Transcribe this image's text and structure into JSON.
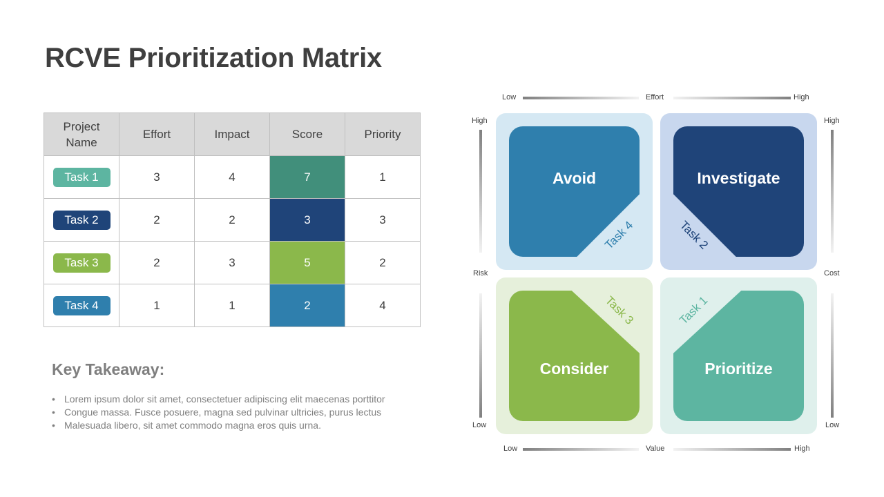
{
  "title": "RCVE Prioritization Matrix",
  "table": {
    "headers": [
      "Project\nName",
      "Effort",
      "Impact",
      "Score",
      "Priority"
    ],
    "rows": [
      {
        "name": "Task 1",
        "effort": "3",
        "impact": "4",
        "score": "7",
        "priority": "1",
        "color": "#5db5a1",
        "score_color": "#418f7b"
      },
      {
        "name": "Task 2",
        "effort": "2",
        "impact": "2",
        "score": "3",
        "priority": "3",
        "color": "#1f4479",
        "score_color": "#1f4479"
      },
      {
        "name": "Task 3",
        "effort": "2",
        "impact": "3",
        "score": "5",
        "priority": "2",
        "color": "#8bb84b",
        "score_color": "#8bb84b"
      },
      {
        "name": "Task 4",
        "effort": "1",
        "impact": "1",
        "score": "2",
        "priority": "4",
        "color": "#2f7fad",
        "score_color": "#2f7fad"
      }
    ]
  },
  "takeaway": {
    "title": "Key Takeaway:",
    "bullets": [
      "Lorem ipsum dolor sit amet, consectetuer adipiscing elit maecenas porttitor",
      "Congue massa. Fusce posuere, magna sed pulvinar ultricies, purus lectus",
      "Malesuada libero, sit amet commodo magna eros quis urna."
    ]
  },
  "matrix": {
    "top_axis": {
      "low": "Low",
      "label": "Effort",
      "high": "High"
    },
    "bottom_axis": {
      "low": "Low",
      "label": "Value",
      "high": "High"
    },
    "left_axis": {
      "high": "High",
      "label": "Risk",
      "low": "Low"
    },
    "right_axis": {
      "high": "High",
      "label": "Cost",
      "low": "Low"
    },
    "quadrants": {
      "avoid": {
        "label": "Avoid",
        "task": "Task 4",
        "bg": "#d5e8f3",
        "color": "#2f7fad"
      },
      "investigate": {
        "label": "Investigate",
        "task": "Task 2",
        "bg": "#c8d7ee",
        "color": "#1f4479"
      },
      "consider": {
        "label": "Consider",
        "task": "Task 3",
        "bg": "#e6f0db",
        "color": "#8bb84b"
      },
      "prioritize": {
        "label": "Prioritize",
        "task": "Task 1",
        "bg": "#dff0ec",
        "color": "#5db5a1"
      }
    }
  }
}
